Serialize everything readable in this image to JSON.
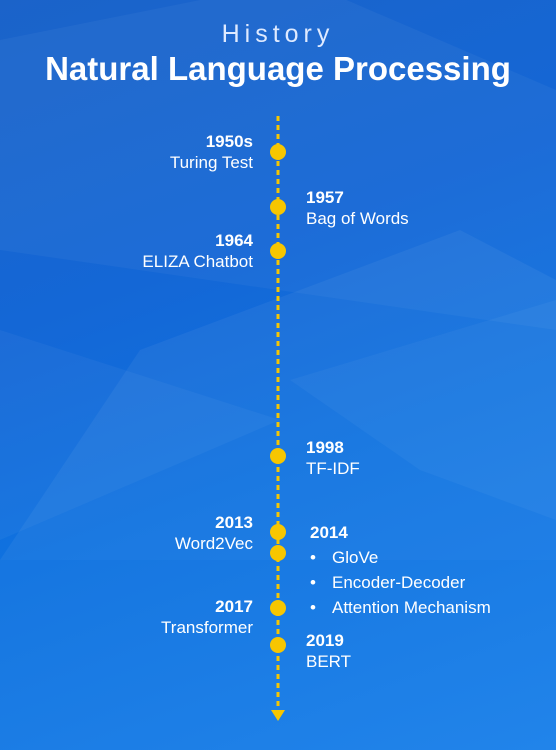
{
  "header": {
    "title": "History",
    "subtitle": "Natural Language Processing"
  },
  "colors": {
    "accent": "#f7c600",
    "text": "#ffffff",
    "background": "#1467d6"
  },
  "events": [
    {
      "year": "1950s",
      "label": "Turing Test",
      "side": "left"
    },
    {
      "year": "1957",
      "label": "Bag of Words",
      "side": "right"
    },
    {
      "year": "1964",
      "label": "ELIZA Chatbot",
      "side": "left"
    },
    {
      "year": "1998",
      "label": "TF-IDF",
      "side": "right"
    },
    {
      "year": "2013",
      "label": "Word2Vec",
      "side": "left"
    },
    {
      "year": "2014",
      "items": [
        "GloVe",
        "Encoder-Decoder",
        "Attention Mechanism"
      ],
      "side": "right"
    },
    {
      "year": "2017",
      "label": "Transformer",
      "side": "left"
    },
    {
      "year": "2019",
      "label": "BERT",
      "side": "right"
    }
  ]
}
